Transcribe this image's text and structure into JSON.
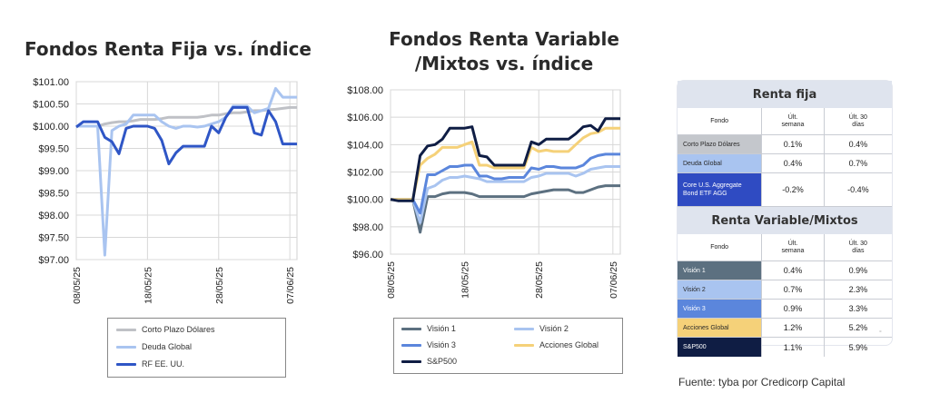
{
  "chart_data": [
    {
      "type": "line",
      "title": "Fondos Renta Fija vs. índice",
      "xlabel": "",
      "ylabel": "",
      "ylim": [
        97.0,
        101.0
      ],
      "yticks": [
        "$101.00",
        "$100.50",
        "$100.00",
        "$99.50",
        "$99.00",
        "$98.50",
        "$98.00",
        "$97.50",
        "$97.00"
      ],
      "xticks": [
        "08/05/25",
        "18/05/25",
        "28/05/25",
        "07/06/25"
      ],
      "x": [
        "08/05/25",
        "09/05/25",
        "10/05/25",
        "11/05/25",
        "12/05/25",
        "13/05/25",
        "14/05/25",
        "15/05/25",
        "16/05/25",
        "17/05/25",
        "18/05/25",
        "19/05/25",
        "20/05/25",
        "21/05/25",
        "22/05/25",
        "23/05/25",
        "24/05/25",
        "25/05/25",
        "26/05/25",
        "27/05/25",
        "28/05/25",
        "29/05/25",
        "30/05/25",
        "31/05/25",
        "01/06/25",
        "02/06/25",
        "03/06/25",
        "04/06/25",
        "05/06/25",
        "06/06/25",
        "07/06/25",
        "08/06/25"
      ],
      "series": [
        {
          "name": "Corto Plazo Dólares",
          "color": "#bfc1c6",
          "values": [
            100.0,
            100.0,
            100.0,
            100.0,
            100.05,
            100.08,
            100.1,
            100.1,
            100.12,
            100.15,
            100.15,
            100.15,
            100.17,
            100.2,
            100.2,
            100.2,
            100.2,
            100.2,
            100.22,
            100.25,
            100.25,
            100.28,
            100.3,
            100.3,
            100.32,
            100.35,
            100.35,
            100.37,
            100.38,
            100.4,
            100.42,
            100.42
          ]
        },
        {
          "name": "Deuda Global",
          "color": "#a9c4f0",
          "values": [
            100.0,
            100.0,
            100.0,
            100.0,
            97.1,
            99.9,
            100.0,
            100.05,
            100.25,
            100.25,
            100.25,
            100.25,
            100.1,
            100.0,
            99.95,
            100.0,
            100.0,
            99.98,
            100.0,
            100.05,
            100.1,
            100.2,
            100.45,
            100.45,
            100.45,
            100.3,
            100.35,
            100.4,
            100.85,
            100.65,
            100.65,
            100.65
          ]
        },
        {
          "name": "RF EE. UU.",
          "color": "#2f56c6",
          "values": [
            99.98,
            100.1,
            100.1,
            100.1,
            99.75,
            99.65,
            99.38,
            99.95,
            100.0,
            100.0,
            100.0,
            99.95,
            99.68,
            99.15,
            99.4,
            99.55,
            99.55,
            99.55,
            99.55,
            100.0,
            99.85,
            100.2,
            100.42,
            100.42,
            100.42,
            99.85,
            99.8,
            100.35,
            100.1,
            99.6,
            99.6,
            99.6
          ]
        }
      ]
    },
    {
      "type": "line",
      "title": "Fondos Renta Variable /Mixtos vs. índice",
      "xlabel": "",
      "ylabel": "",
      "ylim": [
        96.0,
        108.0
      ],
      "yticks": [
        "$108.00",
        "$106.00",
        "$104.00",
        "$102.00",
        "$100.00",
        "$98.00",
        "$96.00"
      ],
      "xticks": [
        "08/05/25",
        "18/05/25",
        "28/05/25",
        "07/06/25"
      ],
      "x": [
        "08/05/25",
        "09/05/25",
        "10/05/25",
        "11/05/25",
        "12/05/25",
        "13/05/25",
        "14/05/25",
        "15/05/25",
        "16/05/25",
        "17/05/25",
        "18/05/25",
        "19/05/25",
        "20/05/25",
        "21/05/25",
        "22/05/25",
        "23/05/25",
        "24/05/25",
        "25/05/25",
        "26/05/25",
        "27/05/25",
        "28/05/25",
        "29/05/25",
        "30/05/25",
        "31/05/25",
        "01/06/25",
        "02/06/25",
        "03/06/25",
        "04/06/25",
        "05/06/25",
        "06/06/25",
        "07/06/25",
        "08/06/25"
      ],
      "series": [
        {
          "name": "Visión 1",
          "color": "#5c7080",
          "values": [
            100.0,
            100.0,
            100.0,
            100.0,
            97.6,
            100.2,
            100.2,
            100.4,
            100.5,
            100.5,
            100.5,
            100.4,
            100.2,
            100.2,
            100.2,
            100.2,
            100.2,
            100.2,
            100.2,
            100.4,
            100.5,
            100.6,
            100.7,
            100.7,
            100.7,
            100.5,
            100.5,
            100.7,
            100.9,
            101.0,
            101.0,
            101.0
          ]
        },
        {
          "name": "Visión 2",
          "color": "#a9c4f0",
          "values": [
            100.0,
            100.0,
            100.0,
            100.0,
            98.3,
            100.8,
            101.0,
            101.4,
            101.6,
            101.6,
            101.7,
            101.6,
            101.5,
            101.3,
            101.3,
            101.3,
            101.3,
            101.3,
            101.3,
            101.6,
            101.7,
            101.9,
            101.9,
            101.9,
            101.9,
            101.7,
            101.9,
            102.2,
            102.3,
            102.4,
            102.4,
            102.4
          ]
        },
        {
          "name": "Visión 3",
          "color": "#5b86dc",
          "values": [
            100.0,
            100.0,
            100.0,
            100.0,
            99.0,
            101.8,
            101.8,
            102.1,
            102.4,
            102.4,
            102.5,
            102.5,
            101.7,
            101.7,
            101.5,
            101.5,
            101.6,
            101.6,
            101.6,
            102.3,
            102.2,
            102.4,
            102.4,
            102.3,
            102.3,
            102.3,
            102.5,
            103.0,
            103.2,
            103.3,
            103.3,
            103.3
          ]
        },
        {
          "name": "Acciones Global",
          "color": "#f5d179",
          "values": [
            100.0,
            100.0,
            100.0,
            100.0,
            102.5,
            103.0,
            103.3,
            103.8,
            103.8,
            103.8,
            104.0,
            104.2,
            102.5,
            102.5,
            102.3,
            102.3,
            102.3,
            102.3,
            102.3,
            103.8,
            103.5,
            103.6,
            103.5,
            103.5,
            103.5,
            104.0,
            104.5,
            104.8,
            104.9,
            105.2,
            105.2,
            105.2
          ]
        },
        {
          "name": "S&P500",
          "color": "#0f1d44",
          "values": [
            100.0,
            99.9,
            99.9,
            99.9,
            103.2,
            103.9,
            104.0,
            104.4,
            105.2,
            105.2,
            105.2,
            105.3,
            103.2,
            103.1,
            102.5,
            102.5,
            102.5,
            102.5,
            102.5,
            104.2,
            104.0,
            104.4,
            104.4,
            104.4,
            104.4,
            104.8,
            105.3,
            105.4,
            105.0,
            105.9,
            105.9,
            105.9
          ]
        }
      ]
    }
  ],
  "table": {
    "renta_fija": {
      "title": "Renta fija",
      "col_fondo": "Fondo",
      "col_semana": [
        "Últ.",
        "semana"
      ],
      "col_30": [
        "Últ. 30",
        "días"
      ],
      "rows": [
        {
          "name": "Corto Plazo Dólares",
          "semana": "0.1%",
          "dias30": "0.4%",
          "bg": "#c4c7cc",
          "fg": "#2a2a2a"
        },
        {
          "name": "Deuda Global",
          "semana": "0.4%",
          "dias30": "0.7%",
          "bg": "#a9c4f0",
          "fg": "#2a2a2a"
        },
        {
          "name_line1": "Core U.S. Aggregate",
          "name_line2": "Bond ETF AGG",
          "semana": "-0.2%",
          "dias30": "-0.4%",
          "bg": "#2f4bc2",
          "fg": "#ffffff"
        }
      ]
    },
    "renta_variable": {
      "title": "Renta Variable/Mixtos",
      "col_fondo": "Fondo",
      "col_semana": [
        "Últ.",
        "semana"
      ],
      "col_30": [
        "Últ. 30",
        "días"
      ],
      "rows": [
        {
          "name": "Visión 1",
          "semana": "0.4%",
          "dias30": "0.9%",
          "bg": "#5c7080",
          "fg": "#ffffff"
        },
        {
          "name": "Visión 2",
          "semana": "0.7%",
          "dias30": "2.3%",
          "bg": "#a9c4f0",
          "fg": "#2a2a2a"
        },
        {
          "name": "Visión 3",
          "semana": "0.9%",
          "dias30": "3.3%",
          "bg": "#5b86dc",
          "fg": "#ffffff"
        },
        {
          "name": "Acciones Global",
          "semana": "1.2%",
          "dias30": "5.2%",
          "bg": "#f5d179",
          "fg": "#2a2a2a"
        },
        {
          "name": "S&P500",
          "semana": "1.1%",
          "dias30": "5.9%",
          "bg": "#0f1d44",
          "fg": "#ffffff"
        }
      ]
    },
    "corner_mark": "°"
  },
  "source": "Fuente: tyba por Credicorp Capital"
}
